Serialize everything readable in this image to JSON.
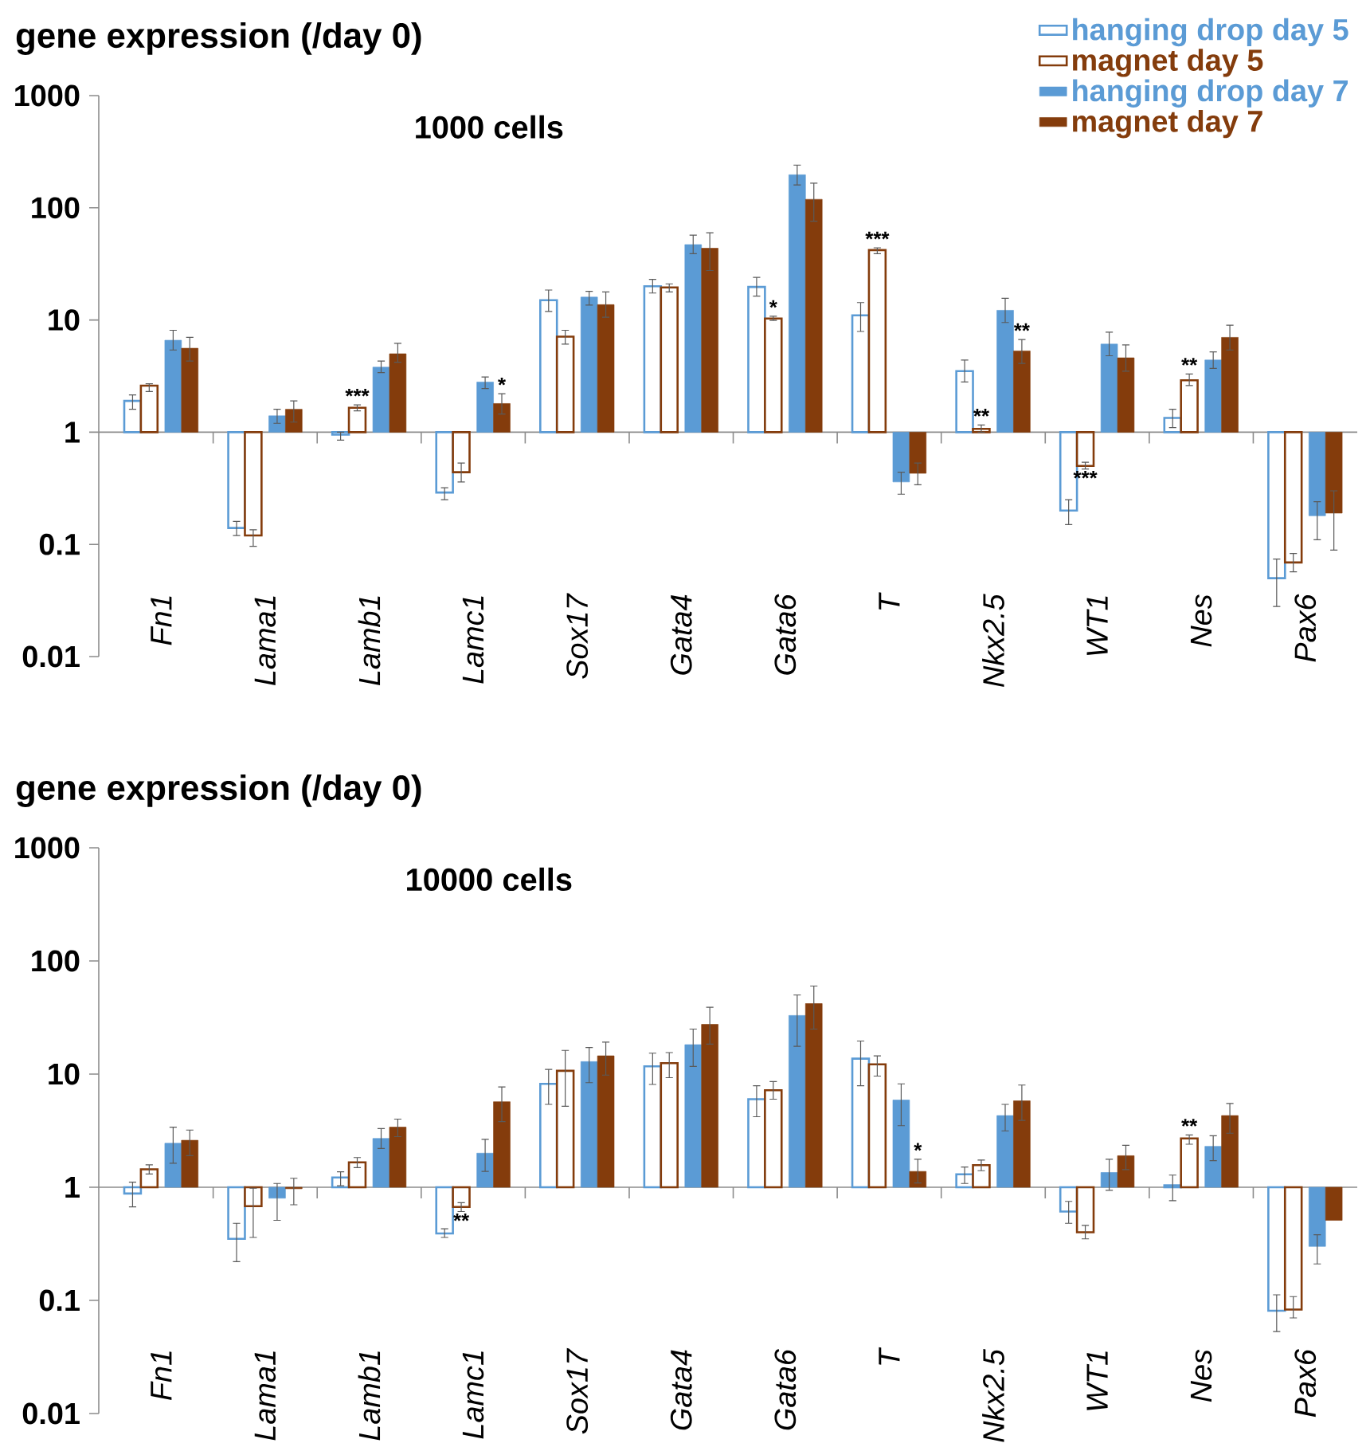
{
  "chart_data": [
    {
      "type": "bar",
      "title": "gene expression (/day 0)",
      "subtitle": "1000 cells",
      "log": true,
      "ylim": [
        0.01,
        1000
      ],
      "yticks": [
        0.01,
        0.1,
        1,
        10,
        100,
        1000
      ],
      "legend": "top right",
      "categories": [
        "Fn1",
        "Lama1",
        "Lamb1",
        "Lamc1",
        "Sox17",
        "Gata4",
        "Gata6",
        "T",
        "Nkx2.5",
        "WT1",
        "Nes",
        "Pax6"
      ],
      "series": [
        {
          "name": "hanging drop day 5",
          "color": "#5b9bd5",
          "base": [
            1,
            1,
            1,
            1,
            1,
            1,
            1,
            1,
            1,
            1,
            1,
            1
          ],
          "values": [
            0.9,
            -0.86,
            -0.05,
            -0.71,
            14,
            19,
            18.7,
            10,
            2.5,
            -0.8,
            0.34,
            -0.95
          ],
          "errors": [
            [
              1.6,
              2.15
            ],
            [
              0.12,
              0.16
            ],
            [
              0.85,
              1.0
            ],
            [
              0.25,
              0.32
            ],
            [
              11.9,
              18.5
            ],
            [
              17.4,
              23
            ],
            [
              16.3,
              24
            ],
            [
              7.9,
              14.3
            ],
            [
              2.8,
              4.4
            ],
            [
              0.15,
              0.25
            ],
            [
              1.1,
              1.6
            ],
            [
              0.028,
              0.074
            ]
          ]
        },
        {
          "name": "magnet day 5",
          "color": "#843c0c",
          "base": [
            1,
            1,
            1,
            1,
            1,
            1,
            1,
            1,
            1,
            1,
            1,
            1
          ],
          "values": [
            1.6,
            -0.88,
            0.65,
            -0.56,
            6.1,
            18.5,
            9.3,
            41,
            0.07,
            -0.5,
            1.9,
            -0.931
          ],
          "errors": [
            [
              2.3,
              2.7
            ],
            [
              0.096,
              0.135
            ],
            [
              1.55,
              1.75
            ],
            [
              0.36,
              0.53
            ],
            [
              6.1,
              8.1
            ],
            [
              17.8,
              21
            ],
            [
              9.9,
              10.8
            ],
            [
              39,
              44
            ],
            [
              1.0,
              1.16
            ],
            [
              0.47,
              0.54
            ],
            [
              2.6,
              3.3
            ],
            [
              0.057,
              0.083
            ]
          ]
        },
        {
          "name": "hanging drop day 7",
          "color": "#5b9bd5",
          "base": [
            1,
            1,
            1,
            1,
            1,
            1,
            1,
            1,
            1,
            1,
            1,
            1
          ],
          "values": [
            5.6,
            0.4,
            2.8,
            1.8,
            15,
            46,
            196,
            -0.64,
            11.2,
            5.1,
            3.4,
            -0.82
          ],
          "errors": [
            [
              5.4,
              8.1
            ],
            [
              1.2,
              1.6
            ],
            [
              3.4,
              4.3
            ],
            [
              2.45,
              3.1
            ],
            [
              13.6,
              18
            ],
            [
              39,
              57
            ],
            [
              160,
              240
            ],
            [
              0.28,
              0.44
            ],
            [
              9.5,
              15.6
            ],
            [
              4.8,
              7.8
            ],
            [
              3.7,
              5.2
            ],
            [
              0.11,
              0.24
            ]
          ]
        },
        {
          "name": "magnet day 7",
          "color": "#843c0c",
          "base": [
            1,
            1,
            1,
            1,
            1,
            1,
            1,
            1,
            1,
            1,
            1,
            1
          ],
          "values": [
            4.6,
            0.6,
            4.0,
            0.8,
            12.7,
            42.6,
            118,
            -0.57,
            4.3,
            3.6,
            6.0,
            -0.81
          ],
          "errors": [
            [
              4.3,
              7.0
            ],
            [
              1.23,
              1.9
            ],
            [
              4.2,
              6.2
            ],
            [
              1.45,
              2.2
            ],
            [
              10.6,
              17.8
            ],
            [
              27.6,
              60
            ],
            [
              76,
              166
            ],
            [
              0.34,
              0.53
            ],
            [
              4.1,
              6.7
            ],
            [
              3.5,
              6.0
            ],
            [
              5.4,
              9.0
            ],
            [
              0.089,
              0.3
            ]
          ]
        }
      ],
      "annotations": [
        {
          "text": "***",
          "x": "Lamb1",
          "y": 1.65
        },
        {
          "text": "*",
          "x": "Lamc1",
          "y": 1.8
        },
        {
          "text": "*",
          "x": "Gata6",
          "y": 10.3
        },
        {
          "text": "***",
          "x": "T",
          "y": 42
        },
        {
          "text": "**",
          "x": "Nkx2.5",
          "y": 1.07
        },
        {
          "text": "**",
          "x": "Nkx2.5",
          "y": 5.3
        },
        {
          "text": "***",
          "x": "WT1",
          "y": 0.5
        },
        {
          "text": "**",
          "x": "Nes",
          "y": 2.9
        }
      ]
    },
    {
      "type": "bar",
      "title": "gene expression (/day 0)",
      "subtitle": "10000 cells",
      "log": true,
      "ylim": [
        0.01,
        1000
      ],
      "yticks": [
        0.01,
        0.1,
        1,
        10,
        100,
        1000
      ],
      "legend": false,
      "categories": [
        "Fn1",
        "Lama1",
        "Lamb1",
        "Lamc1",
        "Sox17",
        "Gata4",
        "Gata6",
        "T",
        "Nkx2.5",
        "WT1",
        "Nes",
        "Pax6"
      ],
      "series": [
        {
          "color": "#5b9bd5",
          "base": [
            1,
            1,
            1,
            1,
            1,
            1,
            1,
            1,
            1,
            1,
            1,
            1
          ],
          "values": [
            -0.12,
            -0.65,
            0.22,
            -0.61,
            7.2,
            10.7,
            5.0,
            12.7,
            0.3,
            -0.39,
            0.04,
            -0.919
          ],
          "errors": [
            [
              0.67,
              1.11
            ],
            [
              0.22,
              0.48
            ],
            [
              1.03,
              1.37
            ],
            [
              0.36,
              0.43
            ],
            [
              5.4,
              11
            ],
            [
              8.1,
              15.3
            ],
            [
              4.2,
              7.9
            ],
            [
              7.9,
              19.6
            ],
            [
              1.08,
              1.51
            ],
            [
              0.48,
              0.75
            ],
            [
              0.76,
              1.28
            ],
            [
              0.053,
              0.112
            ]
          ]
        },
        {
          "color": "#843c0c",
          "base": [
            1,
            1,
            1,
            1,
            1,
            1,
            1,
            1,
            1,
            1,
            1,
            1
          ],
          "values": [
            0.44,
            -0.32,
            0.66,
            -0.33,
            9.7,
            11.5,
            6.2,
            11.2,
            0.57,
            -0.6,
            1.7,
            -0.917
          ],
          "errors": [
            [
              1.31,
              1.58
            ],
            [
              0.36,
              0.98
            ],
            [
              1.49,
              1.83
            ],
            [
              0.61,
              0.73
            ],
            [
              5.2,
              16.2
            ],
            [
              9.3,
              15.5
            ],
            [
              6.0,
              8.6
            ],
            [
              9.6,
              14.5
            ],
            [
              1.4,
              1.74
            ],
            [
              0.35,
              0.46
            ],
            [
              2.4,
              2.9
            ],
            [
              0.07,
              0.108
            ]
          ]
        },
        {
          "color": "#5b9bd5",
          "base": [
            1,
            1,
            1,
            1,
            1,
            1,
            1,
            1,
            1,
            1,
            1,
            1
          ],
          "values": [
            1.45,
            -0.2,
            1.7,
            1.0,
            11.9,
            17.2,
            32,
            4.9,
            3.3,
            0.35,
            1.3,
            -0.7
          ],
          "errors": [
            [
              1.63,
              3.4
            ],
            [
              0.51,
              1.08
            ],
            [
              2.2,
              3.3
            ],
            [
              1.38,
              2.65
            ],
            [
              8.4,
              17.2
            ],
            [
              11.7,
              25
            ],
            [
              17.6,
              50
            ],
            [
              3.5,
              8.2
            ],
            [
              3.15,
              5.4
            ],
            [
              0.94,
              1.77
            ],
            [
              1.72,
              2.85
            ],
            [
              0.21,
              0.38
            ]
          ]
        },
        {
          "color": "#843c0c",
          "base": [
            1,
            1,
            1,
            1,
            1,
            1,
            1,
            1,
            1,
            1,
            1,
            1
          ],
          "values": [
            1.6,
            -0.03,
            2.4,
            4.7,
            13.5,
            26.5,
            41,
            0.38,
            4.8,
            0.9,
            3.3,
            -0.49
          ],
          "errors": [
            [
              1.9,
              3.2
            ],
            [
              0.7,
              1.2
            ],
            [
              2.8,
              4.0
            ],
            [
              3.8,
              7.7
            ],
            [
              9.8,
              19.2
            ],
            [
              18.4,
              39
            ],
            [
              25,
              60
            ],
            [
              1.09,
              1.77
            ],
            [
              3.9,
              8.0
            ],
            [
              1.43,
              2.35
            ],
            [
              3.0,
              5.5
            ],
            null
          ]
        }
      ],
      "annotations": [
        {
          "text": "**",
          "x": "Lamc1",
          "y": 0.67
        },
        {
          "text": "*",
          "x": "T",
          "y": 1.38
        },
        {
          "text": "**",
          "x": "Nes",
          "y": 2.7
        }
      ]
    }
  ]
}
